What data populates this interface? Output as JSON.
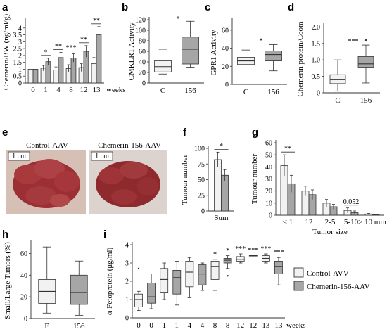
{
  "panels": {
    "a": "a",
    "b": "b",
    "c": "c",
    "d": "d",
    "e": "e",
    "f": "f",
    "g": "g",
    "h": "h",
    "i": "i"
  },
  "colors": {
    "light": "#f2f2f2",
    "dark": "#a6a6a6",
    "axis": "#333333",
    "liver_bg": "#d6c0b6",
    "liver": "#9b2f33"
  },
  "photos": {
    "left_title": "Control-AAV",
    "right_title": "Chemerin-156-AAV",
    "scale": "1 cm"
  },
  "legend": {
    "items": [
      {
        "label": "Control-AVV",
        "color": "#f2f2f2"
      },
      {
        "label": "Chemerin-156-AAV",
        "color": "#a6a6a6"
      }
    ]
  },
  "chart_data": [
    {
      "panel": "a",
      "type": "bar",
      "ylabel": "Chemerin/BW (ng/ml/g)",
      "xlabel": "weeks",
      "ylim": [
        0,
        4.5
      ],
      "yticks": [
        "0",
        "0.5",
        "1",
        "1.5",
        "2",
        "2.5",
        "3",
        "3.5",
        "4"
      ],
      "categories": [
        "0",
        "1",
        "4",
        "8",
        "12",
        "13"
      ],
      "series": [
        {
          "values": [
            1.0,
            1.08,
            0.95,
            1.05,
            1.12,
            1.4
          ],
          "errors": [
            0.0,
            0.2,
            0.22,
            0.28,
            0.28,
            0.45
          ]
        },
        {
          "values": [
            1.0,
            1.55,
            1.85,
            1.82,
            2.3,
            3.5
          ],
          "errors": [
            0.0,
            0.25,
            0.38,
            0.3,
            0.42,
            0.6
          ]
        }
      ],
      "significance": [
        "",
        "*",
        "**",
        "***",
        "**",
        "**"
      ]
    },
    {
      "panel": "b",
      "type": "box",
      "ylabel": "CMKLR1 Activity",
      "ylim": [
        0,
        120
      ],
      "yticks": [
        "0",
        "20",
        "40",
        "60",
        "80",
        "100",
        "120"
      ],
      "categories": [
        "C",
        "156"
      ],
      "boxes": [
        {
          "whislo": 17,
          "q1": 21,
          "med": 31,
          "q3": 42,
          "whishi": 64
        },
        {
          "whislo": 30,
          "q1": 36,
          "med": 64,
          "q3": 87,
          "whishi": 117
        }
      ],
      "significance": "*"
    },
    {
      "panel": "c",
      "type": "box",
      "ylabel": "GPR1 Activity",
      "ylim": [
        0,
        70
      ],
      "yticks": [
        "0",
        "20",
        "40",
        "60"
      ],
      "categories": [
        "C",
        "156"
      ],
      "boxes": [
        {
          "whislo": 16,
          "q1": 22,
          "med": 26,
          "q3": 30,
          "whishi": 38
        },
        {
          "whislo": 15,
          "q1": 26,
          "med": 33,
          "q3": 37,
          "whishi": 44
        }
      ],
      "significance": "*"
    },
    {
      "panel": "d",
      "type": "box",
      "ylabel": "Chemerin protein/Coom",
      "ylim": [
        0,
        2.05
      ],
      "yticks": [
        "0",
        "0.5",
        "1.0",
        "1.5",
        "2.0"
      ],
      "categories": [
        "C",
        "156"
      ],
      "boxes": [
        {
          "whislo": 0.05,
          "q1": 0.28,
          "med": 0.4,
          "q3": 0.55,
          "whishi": 1.0
        },
        {
          "whislo": 0.3,
          "q1": 0.78,
          "med": 0.88,
          "q3": 1.1,
          "whishi": 1.45,
          "outliers": [
            1.6
          ]
        }
      ],
      "significance": "***"
    },
    {
      "panel": "f",
      "type": "bar",
      "ylabel": "Tumour number",
      "ylim": [
        0,
        100
      ],
      "yticks": [
        "0",
        "25",
        "50",
        "75",
        "100"
      ],
      "categories": [
        "Sum"
      ],
      "series": [
        {
          "values": [
            82
          ],
          "errors": [
            12
          ]
        },
        {
          "values": [
            57
          ],
          "errors": [
            9
          ]
        }
      ],
      "significance": [
        "*"
      ]
    },
    {
      "panel": "g",
      "type": "bar",
      "ylabel": "Tumour number",
      "xlabel": "Tumor size",
      "ylim": [
        0,
        60
      ],
      "yticks": [
        "0",
        "10",
        "20",
        "30",
        "40",
        "50",
        "60"
      ],
      "categories": [
        "< 1",
        "12",
        "2-5",
        "5-10",
        "> 10 mm"
      ],
      "series": [
        {
          "values": [
            41,
            20,
            10,
            4,
            1
          ],
          "errors": [
            9,
            4,
            3,
            2,
            0.5
          ]
        },
        {
          "values": [
            26,
            17,
            7,
            2,
            0.5
          ],
          "errors": [
            7,
            4,
            2,
            1.5,
            0.3
          ]
        }
      ],
      "significance": [
        "**",
        "",
        "",
        "0.052",
        ""
      ]
    },
    {
      "panel": "h",
      "type": "box",
      "ylabel": "Small/Large Tumors (%)",
      "ylim": [
        0,
        70
      ],
      "yticks": [
        "0",
        "20",
        "40",
        "60"
      ],
      "categories": [
        "E",
        "156"
      ],
      "boxes": [
        {
          "whislo": 5,
          "q1": 14,
          "med": 25,
          "q3": 36,
          "whishi": 66
        },
        {
          "whislo": 3,
          "q1": 13,
          "med": 24,
          "q3": 40,
          "whishi": 53
        }
      ]
    },
    {
      "panel": "i",
      "type": "box",
      "ylabel": "α-Fetoprotein (μg/ml)",
      "xlabel": "weeks",
      "ylim": [
        0,
        4
      ],
      "yticks": [
        "0",
        "1",
        "2",
        "3",
        "4"
      ],
      "categories": [
        "0",
        "0",
        "1",
        "1",
        "4",
        "4",
        "8",
        "8",
        "12",
        "12",
        "13",
        "13"
      ],
      "boxes": [
        {
          "whislo": 0.4,
          "q1": 0.6,
          "med": 1.0,
          "q3": 1.3,
          "whishi": 1.45,
          "outliers": [
            2.7
          ],
          "group": 0
        },
        {
          "whislo": 0.5,
          "q1": 0.8,
          "med": 1.15,
          "q3": 1.9,
          "whishi": 2.4,
          "group": 1
        },
        {
          "whislo": 1.0,
          "q1": 1.4,
          "med": 2.1,
          "q3": 2.7,
          "whishi": 3.0,
          "group": 0
        },
        {
          "whislo": 0.7,
          "q1": 1.3,
          "med": 2.2,
          "q3": 2.6,
          "whishi": 3.1,
          "group": 1
        },
        {
          "whislo": 1.1,
          "q1": 1.7,
          "med": 2.5,
          "q3": 3.1,
          "whishi": 3.3,
          "group": 0
        },
        {
          "whislo": 1.5,
          "q1": 1.8,
          "med": 2.4,
          "q3": 2.9,
          "whishi": 3.0,
          "group": 1
        },
        {
          "whislo": 1.5,
          "q1": 2.1,
          "med": 2.8,
          "q3": 3.1,
          "whishi": 3.2,
          "group": 0
        },
        {
          "whislo": 2.7,
          "q1": 3.0,
          "med": 3.15,
          "q3": 3.25,
          "whishi": 3.4,
          "outliers": [
            2.3
          ],
          "group": 1
        },
        {
          "whislo": 3.0,
          "q1": 3.1,
          "med": 3.2,
          "q3": 3.35,
          "whishi": 3.5,
          "group": 0
        },
        {
          "whislo": 3.38,
          "q1": 3.38,
          "med": 3.4,
          "q3": 3.42,
          "whishi": 3.42,
          "group": 1
        },
        {
          "whislo": 3.0,
          "q1": 3.1,
          "med": 3.25,
          "q3": 3.4,
          "whishi": 3.5,
          "group": 0
        },
        {
          "whislo": 1.8,
          "q1": 2.4,
          "med": 2.8,
          "q3": 3.1,
          "whishi": 3.3,
          "group": 1
        }
      ],
      "significance": [
        "",
        "",
        "",
        "",
        "",
        "",
        "*",
        "*",
        "***",
        "***",
        "***",
        "***"
      ]
    }
  ]
}
